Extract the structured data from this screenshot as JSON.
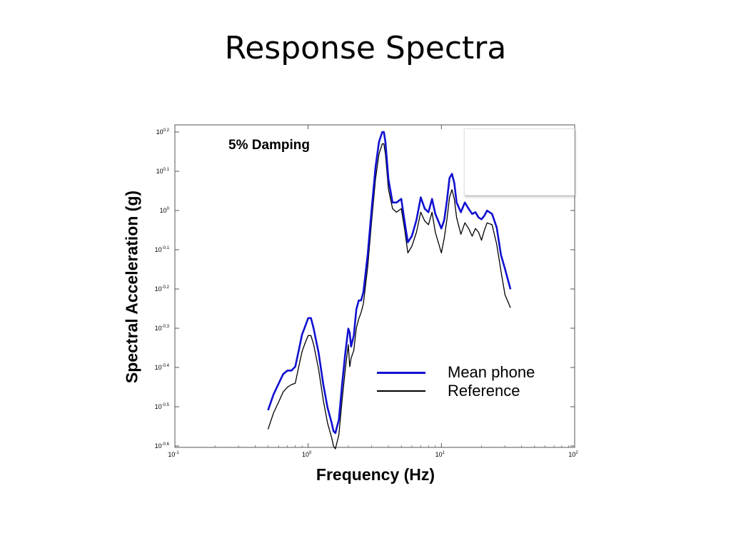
{
  "slide": {
    "title": "Response Spectra"
  },
  "colors": {
    "mean_phone": "#1010d0",
    "reference": "#000000",
    "axis": "#555555"
  },
  "chart_data": {
    "type": "line",
    "title": "",
    "xlabel": "Frequency (Hz)",
    "ylabel": "Spectral Acceleration (g)",
    "xscale": "log",
    "yscale": "log",
    "xlim": [
      0.1,
      100
    ],
    "ylim": [
      0.2512,
      1.5849
    ],
    "grid": false,
    "legend_position": "lower-right",
    "annotation": "5% Damping",
    "x_ticks": [
      {
        "base": "10",
        "exp": "-1",
        "value": 0.1
      },
      {
        "base": "10",
        "exp": "0",
        "value": 1
      },
      {
        "base": "10",
        "exp": "1",
        "value": 10
      },
      {
        "base": "10",
        "exp": "2",
        "value": 100
      }
    ],
    "y_ticks": [
      {
        "base": "10",
        "exp": "0.2",
        "value": 1.5849
      },
      {
        "base": "10",
        "exp": "0.1",
        "value": 1.2589
      },
      {
        "base": "10",
        "exp": "0",
        "value": 1.0
      },
      {
        "base": "10",
        "exp": "-0.1",
        "value": 0.7943
      },
      {
        "base": "10",
        "exp": "-0.2",
        "value": 0.631
      },
      {
        "base": "10",
        "exp": "-0.3",
        "value": 0.5012
      },
      {
        "base": "10",
        "exp": "-0.4",
        "value": 0.3981
      },
      {
        "base": "10",
        "exp": "-0.5",
        "value": 0.3162
      },
      {
        "base": "10",
        "exp": "-0.6",
        "value": 0.2512
      }
    ],
    "series": [
      {
        "name": "Mean phone",
        "color": "#1010d0",
        "points": [
          [
            0.5,
            0.31
          ],
          [
            0.55,
            0.34
          ],
          [
            0.6,
            0.362
          ],
          [
            0.65,
            0.383
          ],
          [
            0.7,
            0.391
          ],
          [
            0.75,
            0.391
          ],
          [
            0.8,
            0.4
          ],
          [
            0.85,
            0.44
          ],
          [
            0.9,
            0.483
          ],
          [
            0.95,
            0.507
          ],
          [
            1.0,
            0.532
          ],
          [
            1.05,
            0.532
          ],
          [
            1.1,
            0.5
          ],
          [
            1.2,
            0.433
          ],
          [
            1.3,
            0.36
          ],
          [
            1.4,
            0.314
          ],
          [
            1.5,
            0.288
          ],
          [
            1.55,
            0.274
          ],
          [
            1.6,
            0.271
          ],
          [
            1.7,
            0.293
          ],
          [
            1.8,
            0.362
          ],
          [
            1.9,
            0.433
          ],
          [
            2.0,
            0.5
          ],
          [
            2.05,
            0.488
          ],
          [
            2.1,
            0.45
          ],
          [
            2.2,
            0.48
          ],
          [
            2.3,
            0.56
          ],
          [
            2.4,
            0.59
          ],
          [
            2.5,
            0.59
          ],
          [
            2.6,
            0.62
          ],
          [
            2.8,
            0.773
          ],
          [
            3.0,
            1.011
          ],
          [
            3.2,
            1.287
          ],
          [
            3.4,
            1.495
          ],
          [
            3.6,
            1.585
          ],
          [
            3.7,
            1.585
          ],
          [
            3.8,
            1.495
          ],
          [
            4.0,
            1.202
          ],
          [
            4.3,
            1.048
          ],
          [
            4.6,
            1.048
          ],
          [
            5.0,
            1.07
          ],
          [
            5.3,
            0.934
          ],
          [
            5.6,
            0.83
          ],
          [
            6.0,
            0.86
          ],
          [
            6.5,
            0.946
          ],
          [
            7.0,
            1.08
          ],
          [
            7.5,
            1.011
          ],
          [
            8.0,
            0.99
          ],
          [
            8.5,
            1.07
          ],
          [
            9.0,
            0.98
          ],
          [
            10.0,
            0.9
          ],
          [
            10.5,
            0.946
          ],
          [
            11.0,
            1.06
          ],
          [
            11.5,
            1.21
          ],
          [
            12.0,
            1.24
          ],
          [
            12.5,
            1.175
          ],
          [
            13.0,
            1.048
          ],
          [
            14.0,
            0.99
          ],
          [
            15.0,
            1.048
          ],
          [
            16.0,
            1.011
          ],
          [
            17.0,
            0.98
          ],
          [
            18.0,
            0.99
          ],
          [
            19.0,
            0.96
          ],
          [
            20.0,
            0.95
          ],
          [
            21.0,
            0.97
          ],
          [
            22.0,
            0.999
          ],
          [
            24.0,
            0.98
          ],
          [
            26.0,
            0.905
          ],
          [
            28.0,
            0.77
          ],
          [
            30.0,
            0.71
          ],
          [
            33.0,
            0.63
          ]
        ]
      },
      {
        "name": "Reference",
        "color": "#000000",
        "points": [
          [
            0.5,
            0.277
          ],
          [
            0.55,
            0.305
          ],
          [
            0.6,
            0.325
          ],
          [
            0.65,
            0.345
          ],
          [
            0.7,
            0.355
          ],
          [
            0.75,
            0.36
          ],
          [
            0.8,
            0.363
          ],
          [
            0.85,
            0.4
          ],
          [
            0.9,
            0.437
          ],
          [
            0.95,
            0.46
          ],
          [
            1.0,
            0.48
          ],
          [
            1.05,
            0.48
          ],
          [
            1.1,
            0.455
          ],
          [
            1.2,
            0.393
          ],
          [
            1.3,
            0.328
          ],
          [
            1.4,
            0.287
          ],
          [
            1.5,
            0.264
          ],
          [
            1.55,
            0.251
          ],
          [
            1.6,
            0.247
          ],
          [
            1.7,
            0.268
          ],
          [
            1.8,
            0.33
          ],
          [
            1.9,
            0.394
          ],
          [
            2.0,
            0.455
          ],
          [
            2.05,
            0.4
          ],
          [
            2.1,
            0.42
          ],
          [
            2.2,
            0.44
          ],
          [
            2.3,
            0.502
          ],
          [
            2.4,
            0.53
          ],
          [
            2.5,
            0.55
          ],
          [
            2.6,
            0.58
          ],
          [
            2.8,
            0.718
          ],
          [
            3.0,
            0.946
          ],
          [
            3.2,
            1.202
          ],
          [
            3.4,
            1.393
          ],
          [
            3.6,
            1.479
          ],
          [
            3.7,
            1.479
          ],
          [
            3.8,
            1.393
          ],
          [
            4.0,
            1.135
          ],
          [
            4.3,
            1.011
          ],
          [
            4.6,
            0.99
          ],
          [
            5.0,
            1.011
          ],
          [
            5.3,
            0.894
          ],
          [
            5.6,
            0.78
          ],
          [
            6.0,
            0.81
          ],
          [
            6.5,
            0.88
          ],
          [
            7.0,
            0.99
          ],
          [
            7.5,
            0.94
          ],
          [
            8.0,
            0.92
          ],
          [
            8.5,
            0.99
          ],
          [
            9.0,
            0.88
          ],
          [
            10.0,
            0.78
          ],
          [
            10.5,
            0.85
          ],
          [
            11.0,
            0.95
          ],
          [
            11.5,
            1.08
          ],
          [
            12.0,
            1.13
          ],
          [
            12.5,
            1.07
          ],
          [
            13.0,
            0.96
          ],
          [
            14.0,
            0.87
          ],
          [
            15.0,
            0.93
          ],
          [
            16.0,
            0.9
          ],
          [
            17.0,
            0.86
          ],
          [
            18.0,
            0.9
          ],
          [
            19.0,
            0.88
          ],
          [
            20.0,
            0.84
          ],
          [
            21.0,
            0.89
          ],
          [
            22.0,
            0.93
          ],
          [
            24.0,
            0.92
          ],
          [
            26.0,
            0.82
          ],
          [
            28.0,
            0.7
          ],
          [
            30.0,
            0.61
          ],
          [
            33.0,
            0.565
          ]
        ]
      }
    ]
  }
}
